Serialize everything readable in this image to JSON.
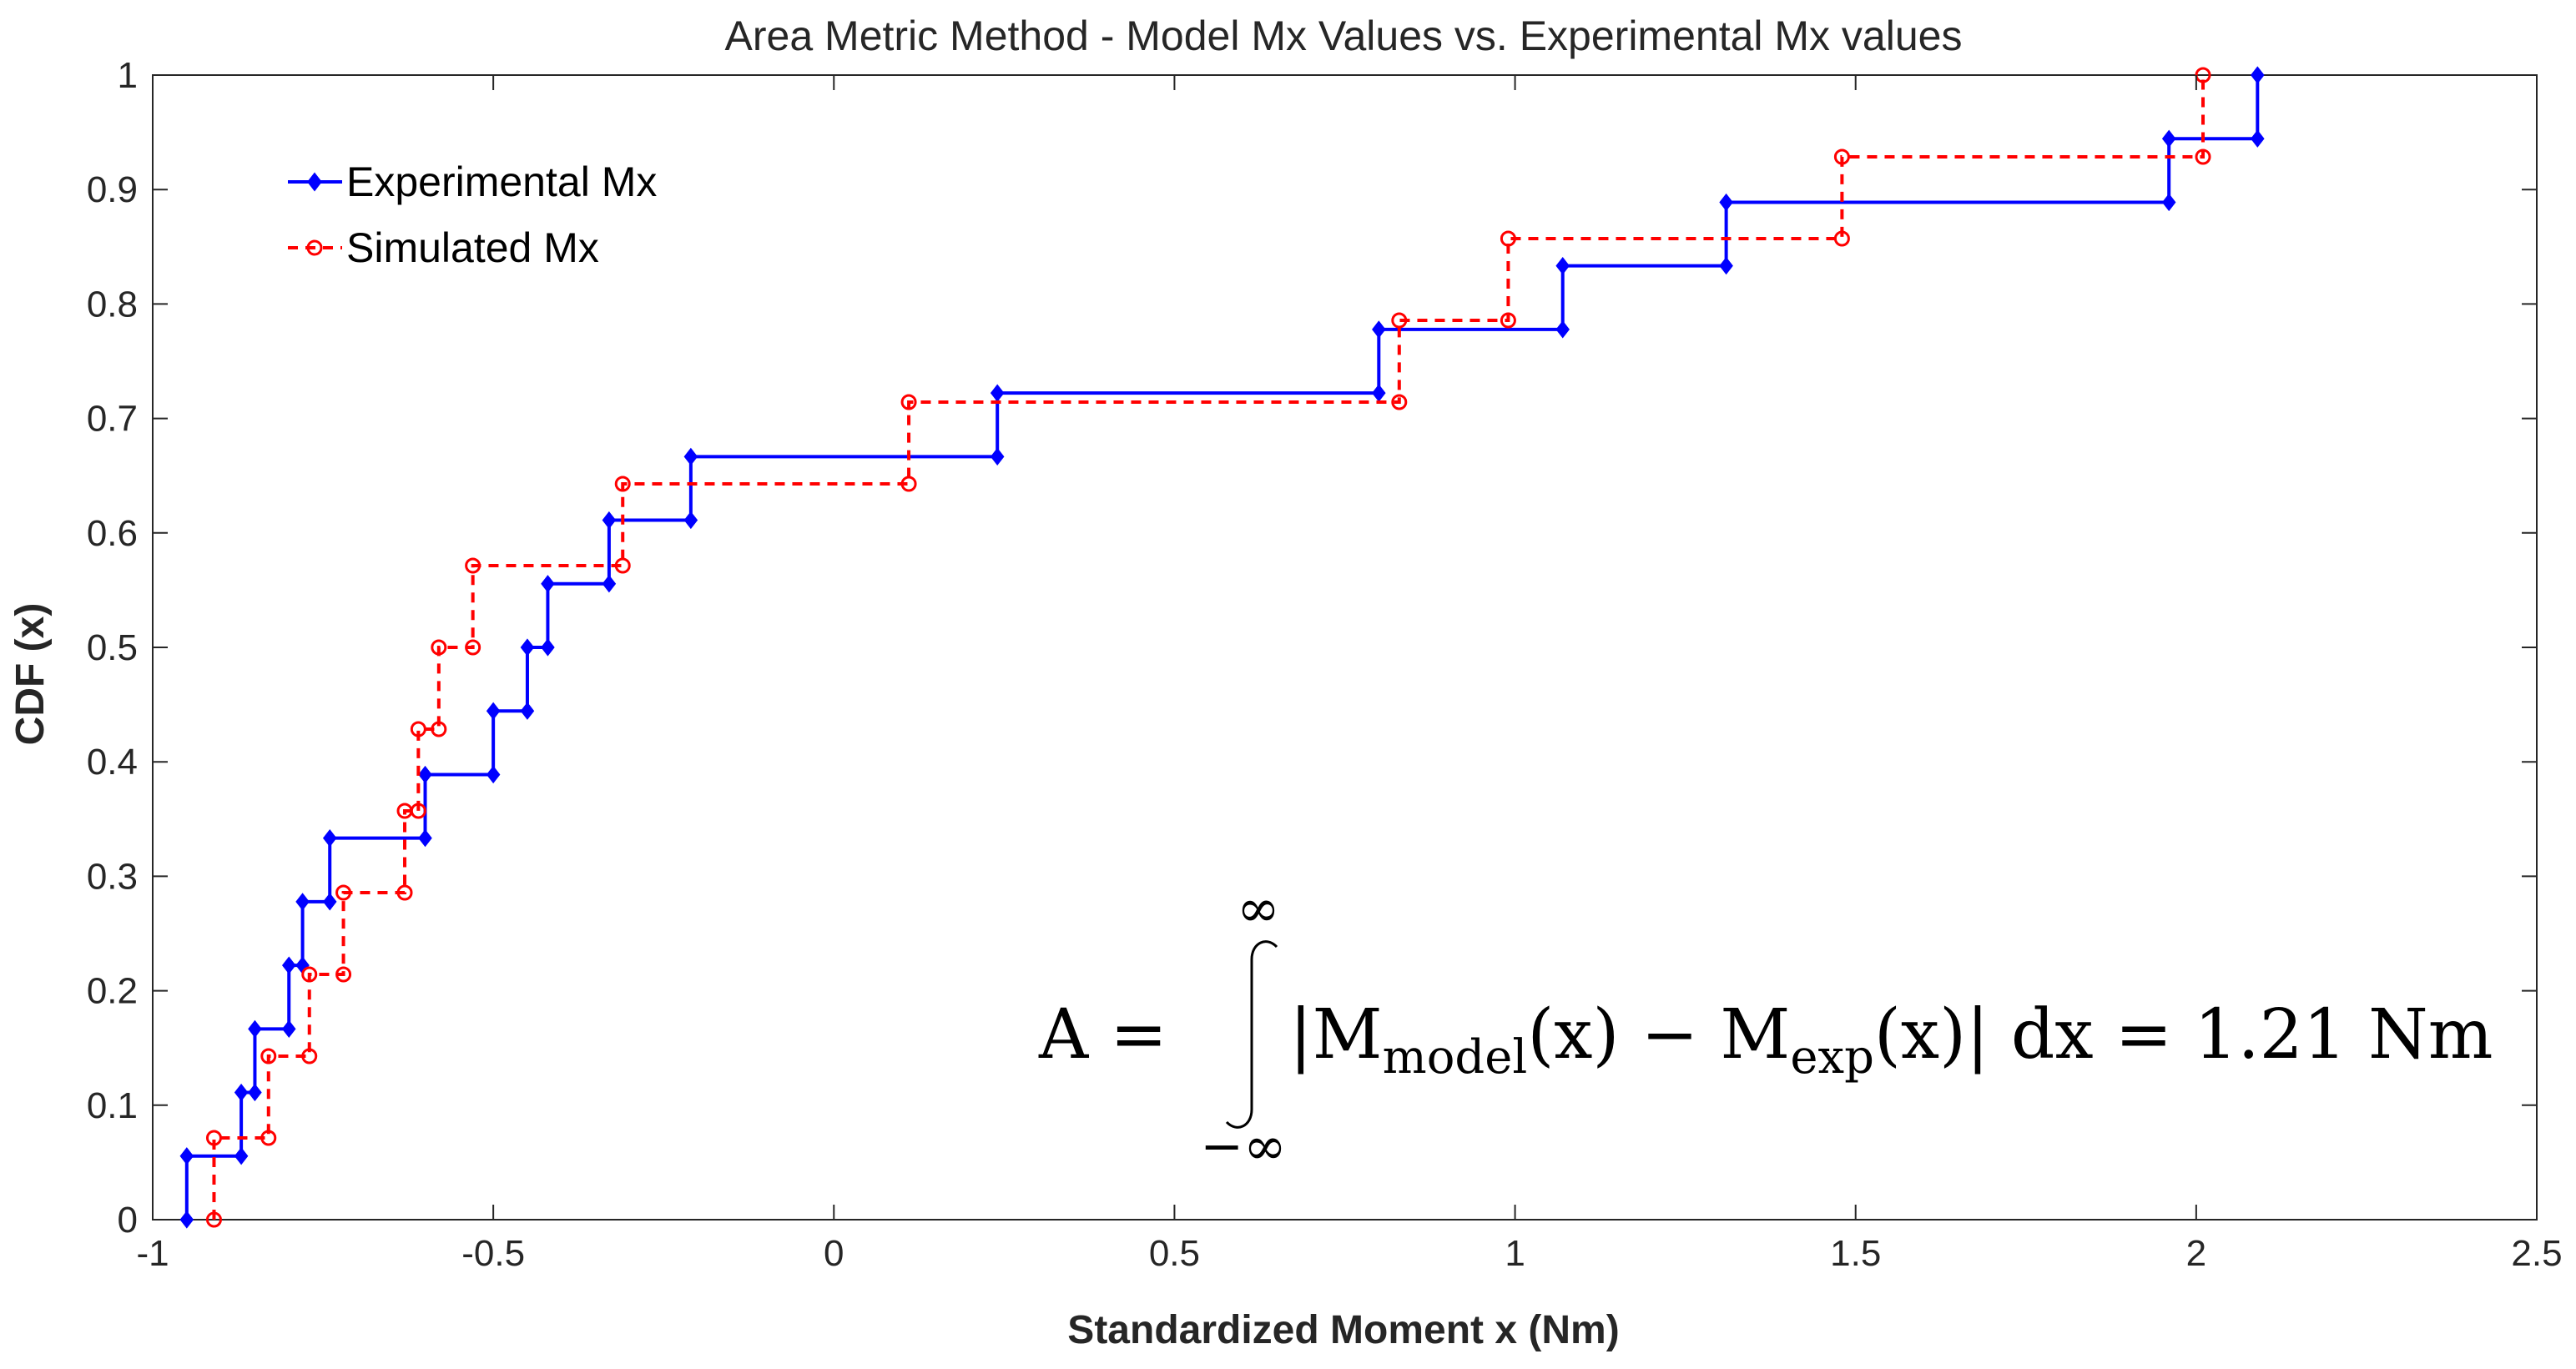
{
  "chart_data": {
    "type": "line",
    "title": "Area Metric Method - Model  Mx Values vs. Experimental  Mx values",
    "xlabel": "Standardized Moment x (Nm)",
    "ylabel": "CDF (x)",
    "xlim": [
      -1,
      2.5
    ],
    "ylim": [
      0,
      1
    ],
    "xticks": [
      -1,
      -0.5,
      0,
      0.5,
      1,
      1.5,
      2,
      2.5
    ],
    "xtick_labels": [
      "-1",
      "-0.5",
      "0",
      "0.5",
      "1",
      "1.5",
      "2",
      "2.5"
    ],
    "yticks": [
      0,
      0.1,
      0.2,
      0.3,
      0.4,
      0.5,
      0.6,
      0.7,
      0.8,
      0.9,
      1
    ],
    "ytick_labels": [
      "0",
      "0.1",
      "0.2",
      "0.3",
      "0.4",
      "0.5",
      "0.6",
      "0.7",
      "0.8",
      "0.9",
      "1"
    ],
    "legend_position": "top-left",
    "series": [
      {
        "name": "Experimental Mx",
        "color": "#0000ff",
        "style": "solid",
        "marker": "diamond",
        "steps": [
          -0.95,
          -0.87,
          -0.85,
          -0.8,
          -0.78,
          -0.74,
          -0.6,
          -0.5,
          -0.45,
          -0.42,
          -0.33,
          -0.21,
          0.24,
          0.8,
          1.07,
          1.31,
          1.96,
          2.09
        ]
      },
      {
        "name": "Simulated Mx",
        "color": "#ff0000",
        "style": "dashed",
        "marker": "circle",
        "steps": [
          -0.91,
          -0.83,
          -0.77,
          -0.72,
          -0.63,
          -0.61,
          -0.58,
          -0.53,
          -0.31,
          0.11,
          0.83,
          0.99,
          1.48,
          2.01
        ]
      }
    ],
    "annotation": {
      "lhs": "A =",
      "upper_limit": "∞",
      "lower_limit": "−∞",
      "integrand_prefix": "|M",
      "sub_model": "model",
      "integrand_mid": "(x) − M",
      "sub_exp": "exp",
      "integrand_suffix": "(x)| dx = 1.21 Nm"
    }
  }
}
